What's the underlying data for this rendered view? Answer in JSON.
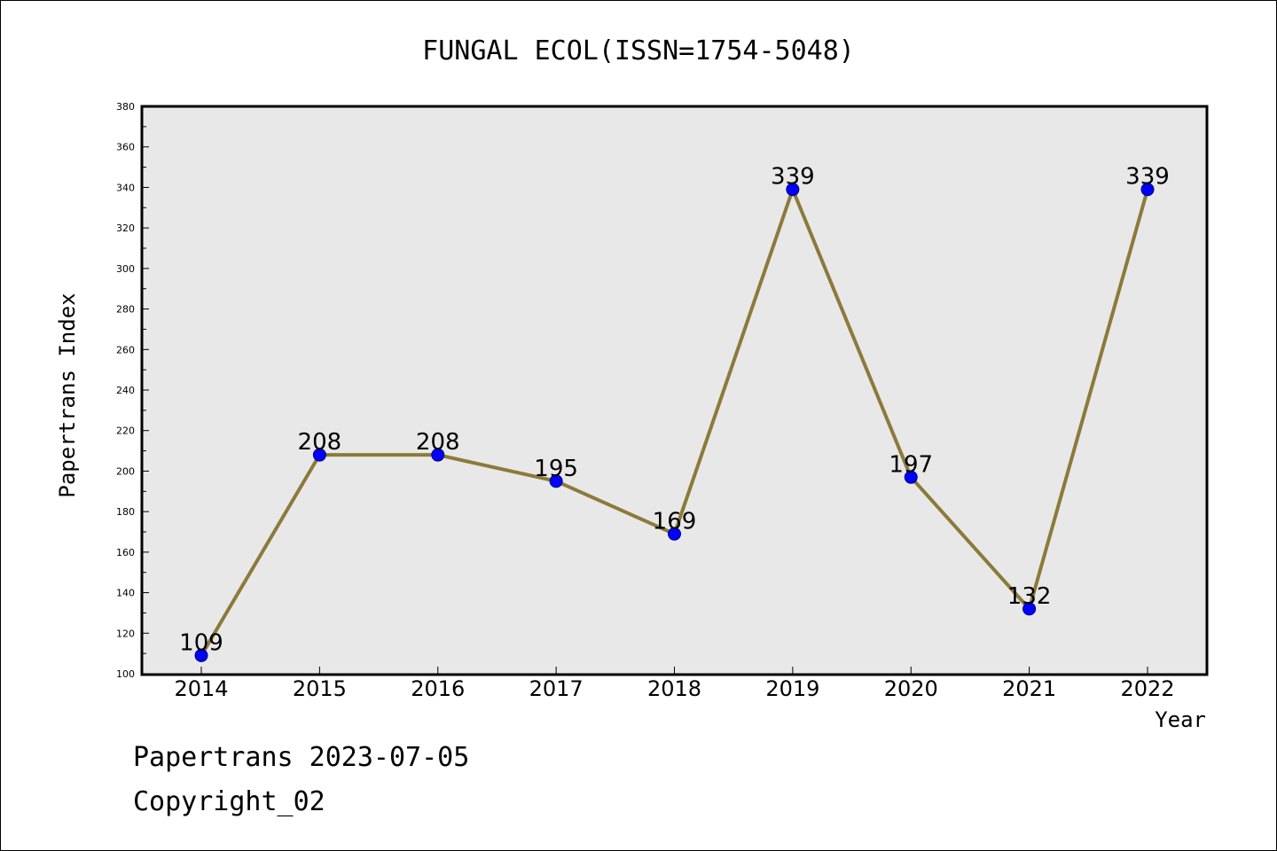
{
  "chart_data": {
    "type": "line",
    "title": "FUNGAL ECOL(ISSN=1754-5048)",
    "xlabel": "Year",
    "ylabel": "Papertrans Index",
    "x": [
      "2014",
      "2015",
      "2016",
      "2017",
      "2018",
      "2019",
      "2020",
      "2021",
      "2022"
    ],
    "values": [
      109,
      208,
      208,
      195,
      169,
      339,
      197,
      132,
      339
    ],
    "data_labels": [
      "109",
      "208",
      "208",
      "195",
      "169",
      "339",
      "197",
      "132",
      "339"
    ],
    "ylim": [
      100,
      380
    ],
    "yticks": [
      "100",
      "120",
      "140",
      "160",
      "180",
      "200",
      "220",
      "240",
      "260",
      "280",
      "300",
      "320",
      "340",
      "360",
      "380"
    ],
    "grid": false,
    "colors": {
      "line": "#8b7a3a",
      "marker": "#0000ff",
      "plot_background": "#e8e8e8"
    }
  },
  "footer": {
    "line1": "Papertrans 2023-07-05",
    "line2": "Copyright_02"
  }
}
